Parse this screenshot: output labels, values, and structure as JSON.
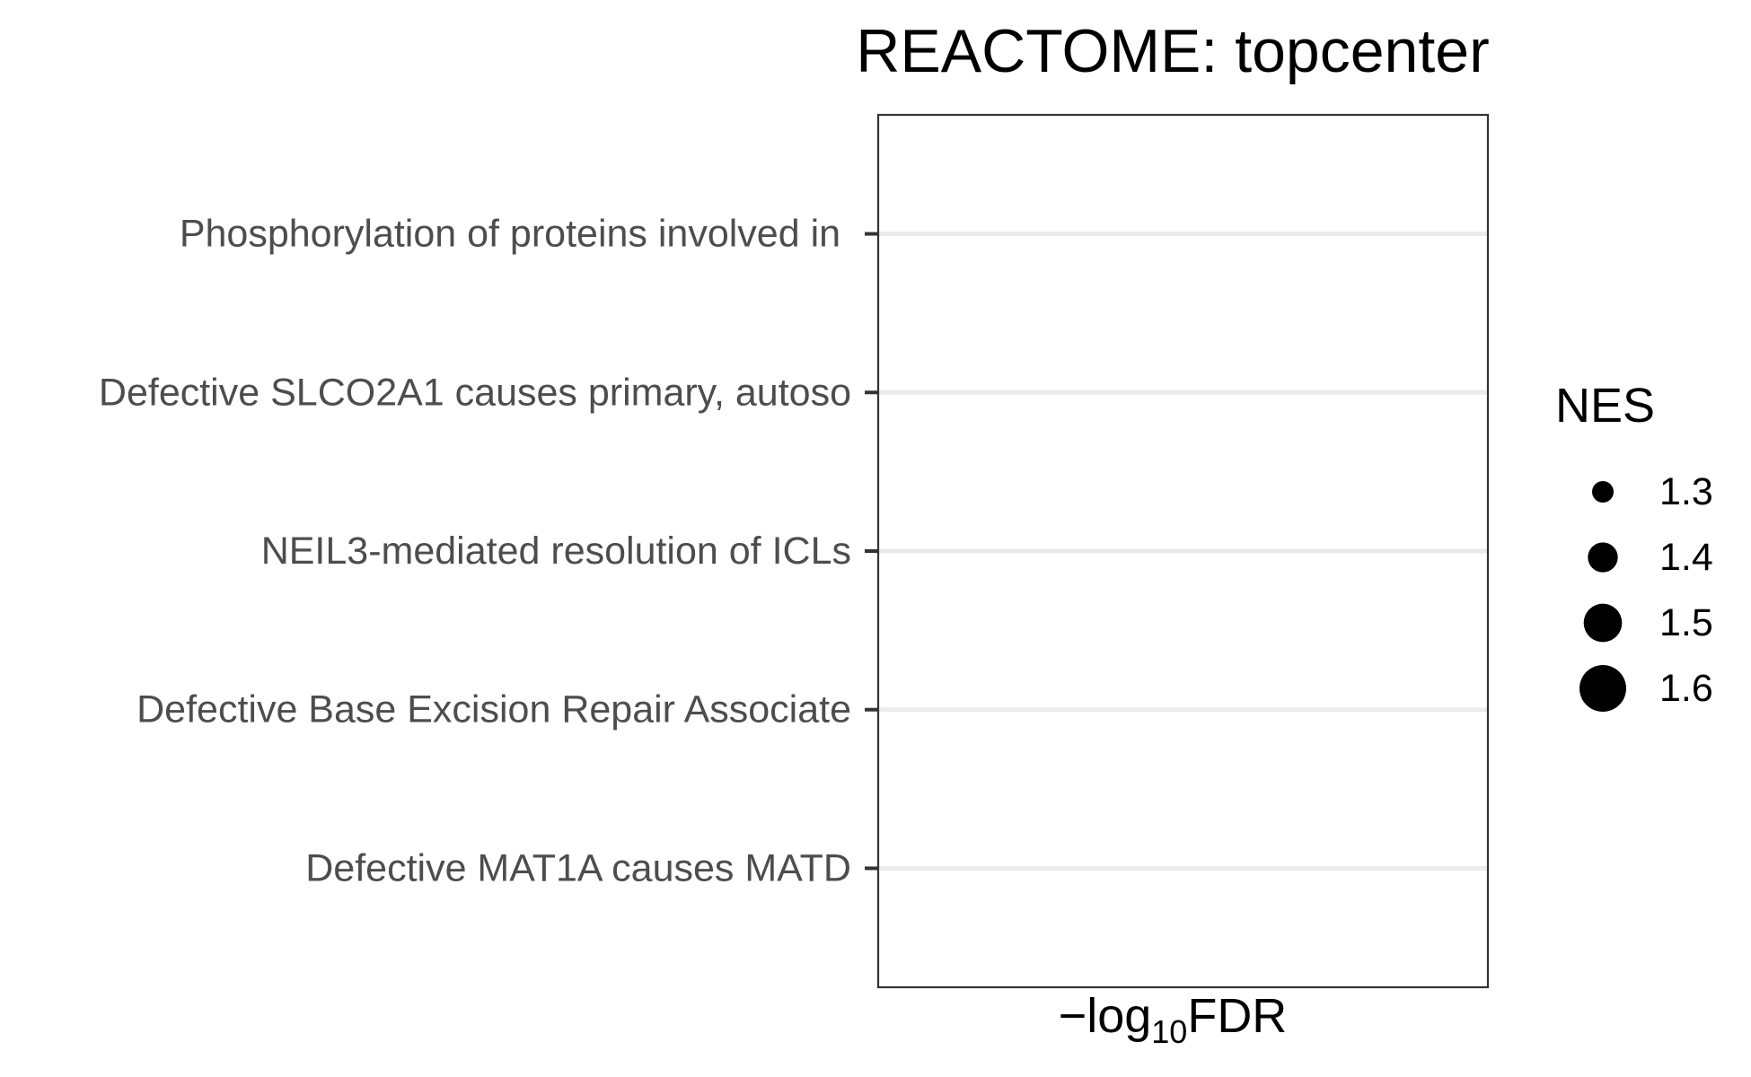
{
  "chart_data": {
    "type": "scatter",
    "title": "REACTOME: topcenter",
    "xlabel": {
      "prefix": "−log",
      "subscript": "10",
      "suffix": "FDR"
    },
    "ylabel": "",
    "categories": [
      "Defective MAT1A causes MATD",
      "Defective Base Excision Repair Associate",
      "NEIL3-mediated resolution of ICLs",
      "Defective SLCO2A1 causes primary, autoso",
      "Phosphorylation of proteins involved in "
    ],
    "points": [],
    "grid": true,
    "legend": {
      "title": "NES",
      "position": "right",
      "size_entries": [
        {
          "label": "1.3",
          "value": 1.3
        },
        {
          "label": "1.4",
          "value": 1.4
        },
        {
          "label": "1.5",
          "value": 1.5
        },
        {
          "label": "1.6",
          "value": 1.6
        }
      ]
    },
    "colors": {
      "grid": "#ebebeb",
      "panel_border": "#333333",
      "tick_text": "#4d4d4d",
      "marker": "#000000"
    }
  }
}
